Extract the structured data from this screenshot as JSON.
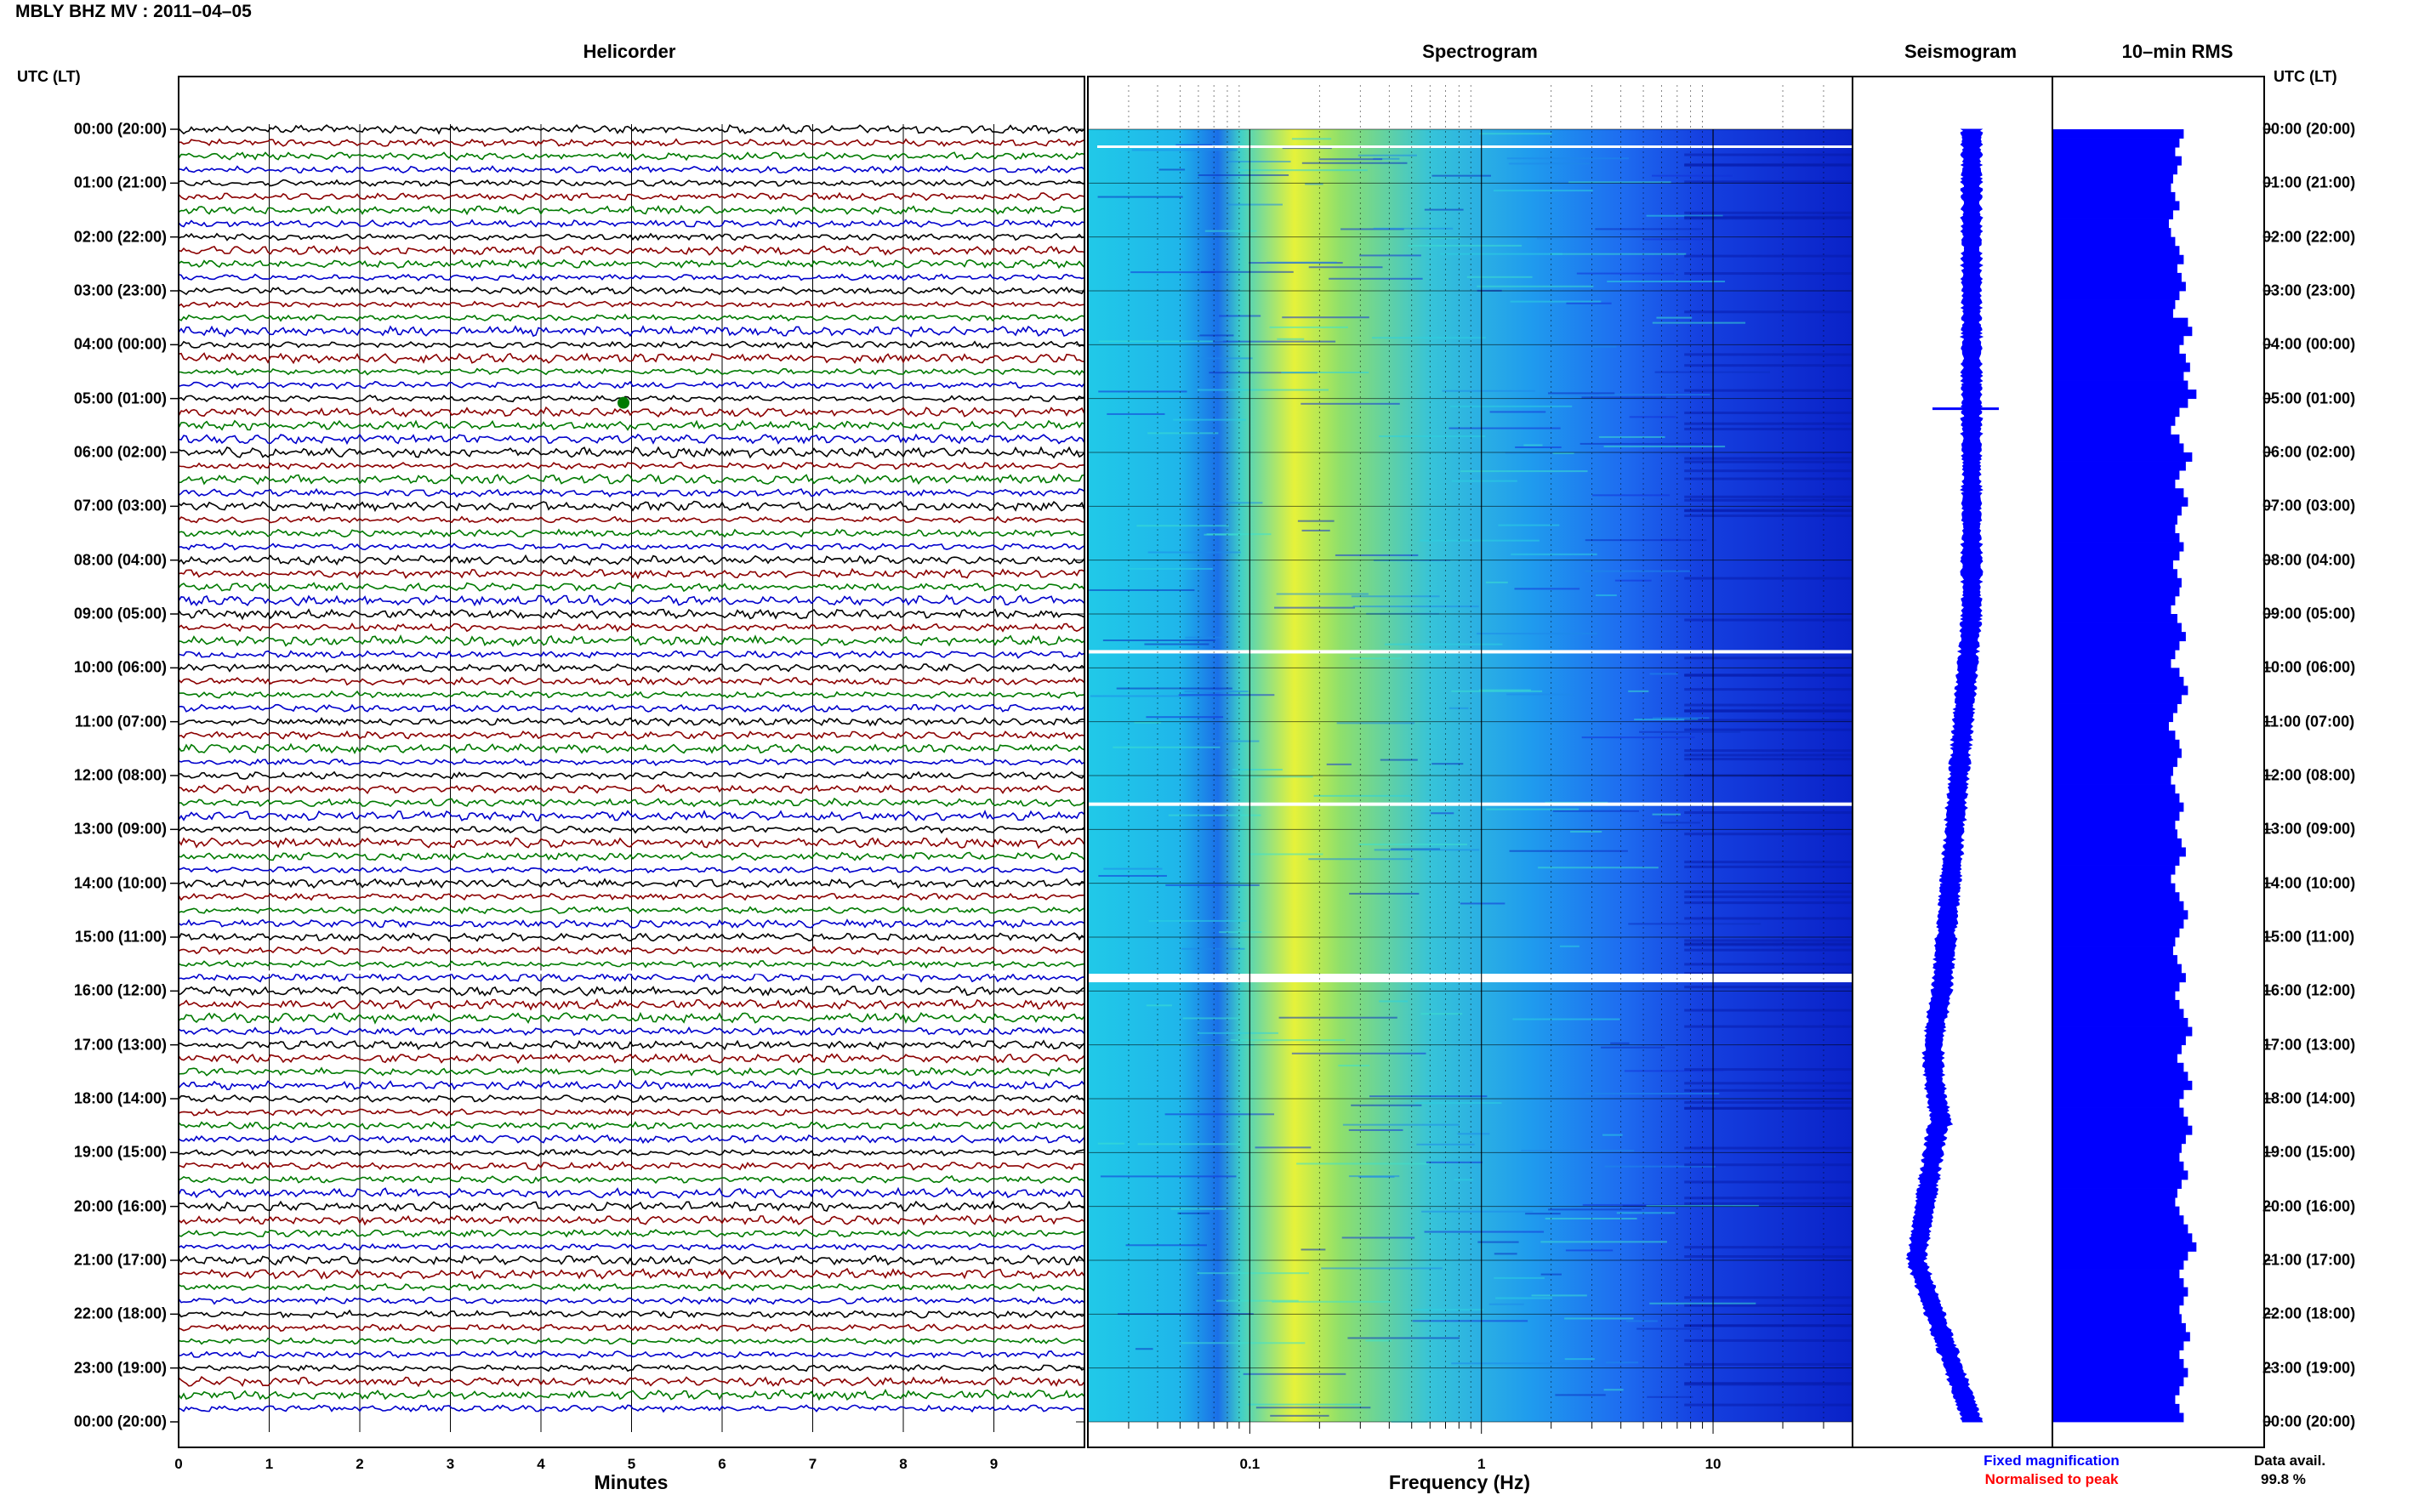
{
  "header": {
    "title": "MBLY BHZ MV : 2011–04–05"
  },
  "panels": {
    "helicorder": "Helicorder",
    "spectrogram": "Spectrogram",
    "seismogram": "Seismogram",
    "rms": "10–min RMS"
  },
  "time_axis_title": "UTC (LT)",
  "time_labels": [
    "00:00 (20:00)",
    "01:00 (21:00)",
    "02:00 (22:00)",
    "03:00 (23:00)",
    "04:00 (00:00)",
    "05:00 (01:00)",
    "06:00 (02:00)",
    "07:00 (03:00)",
    "08:00 (04:00)",
    "09:00 (05:00)",
    "10:00 (06:00)",
    "11:00 (07:00)",
    "12:00 (08:00)",
    "13:00 (09:00)",
    "14:00 (10:00)",
    "15:00 (11:00)",
    "16:00 (12:00)",
    "17:00 (13:00)",
    "18:00 (14:00)",
    "19:00 (15:00)",
    "20:00 (16:00)",
    "21:00 (17:00)",
    "22:00 (18:00)",
    "23:00 (19:00)",
    "00:00 (20:00)"
  ],
  "helicorder_axis": {
    "label": "Minutes",
    "ticks": [
      "0",
      "1",
      "2",
      "3",
      "4",
      "5",
      "6",
      "7",
      "8",
      "9"
    ]
  },
  "spectrogram_axis": {
    "label": "Frequency (Hz)",
    "ticks": [
      "0.1",
      "1",
      "10"
    ]
  },
  "legend": {
    "fixed": "Fixed magnification",
    "normalised": "Normalised to peak"
  },
  "availability": {
    "label": "Data avail.",
    "value": "99.8 %"
  },
  "colors": {
    "trace_cycle": [
      "#000000",
      "#8b0000",
      "#007a00",
      "#0000cc"
    ],
    "seismogram": "#0000ff",
    "rms": "#0000ff",
    "legend_fixed": "#0000ff",
    "legend_normalised": "#ff0000"
  },
  "chart_data": [
    {
      "type": "line",
      "title": "Helicorder",
      "xlabel": "Minutes",
      "xlim": [
        0,
        10
      ],
      "rows": 96,
      "ylabel": "UTC (LT)"
    },
    {
      "type": "heatmap",
      "title": "Spectrogram",
      "xlabel": "Frequency (Hz)",
      "xscale": "log",
      "xlim": [
        0.02,
        40
      ],
      "peak_band_hz": [
        0.15,
        0.35
      ],
      "gaps_utc": [
        "09:40",
        "12:30",
        "15:40"
      ]
    },
    {
      "type": "line",
      "title": "Seismogram",
      "legend": [
        "Fixed magnification",
        "Normalised to peak"
      ],
      "event_utc": "05:00"
    },
    {
      "type": "bar",
      "title": "10–min RMS",
      "ylabel": "UTC (LT)",
      "values": [
        0.62,
        0.6,
        0.58,
        0.61,
        0.59,
        0.57,
        0.56,
        0.58,
        0.6,
        0.57,
        0.55,
        0.56,
        0.58,
        0.6,
        0.62,
        0.59,
        0.61,
        0.63,
        0.6,
        0.58,
        0.57,
        0.64,
        0.66,
        0.62,
        0.6,
        0.63,
        0.65,
        0.62,
        0.64,
        0.68,
        0.64,
        0.6,
        0.58,
        0.56,
        0.6,
        0.62,
        0.66,
        0.63,
        0.6,
        0.58,
        0.62,
        0.64,
        0.61,
        0.59,
        0.58,
        0.6,
        0.62,
        0.6,
        0.57,
        0.59,
        0.61,
        0.6,
        0.58,
        0.56,
        0.59,
        0.61,
        0.63,
        0.6,
        0.58,
        0.56,
        0.6,
        0.62,
        0.64,
        0.61,
        0.59,
        0.57,
        0.55,
        0.58,
        0.6,
        0.61,
        0.59,
        0.57,
        0.56,
        0.58,
        0.6,
        0.62,
        0.6,
        0.58,
        0.59,
        0.61,
        0.63,
        0.6,
        0.58,
        0.56,
        0.58,
        0.6,
        0.62,
        0.64,
        0.62,
        0.6,
        0.58,
        0.57,
        0.59,
        0.61,
        0.63,
        0.6,
        0.58,
        0.6,
        0.62,
        0.64,
        0.66,
        0.63,
        0.61,
        0.59,
        0.62,
        0.64,
        0.66,
        0.62,
        0.6,
        0.62,
        0.64,
        0.66,
        0.63,
        0.61,
        0.6,
        0.62,
        0.64,
        0.61,
        0.59,
        0.58,
        0.6,
        0.62,
        0.64,
        0.66,
        0.68,
        0.64,
        0.62,
        0.6,
        0.62,
        0.64,
        0.62,
        0.6,
        0.61,
        0.63,
        0.65,
        0.62,
        0.6,
        0.62,
        0.64,
        0.62,
        0.6,
        0.58,
        0.6,
        0.62
      ]
    }
  ]
}
